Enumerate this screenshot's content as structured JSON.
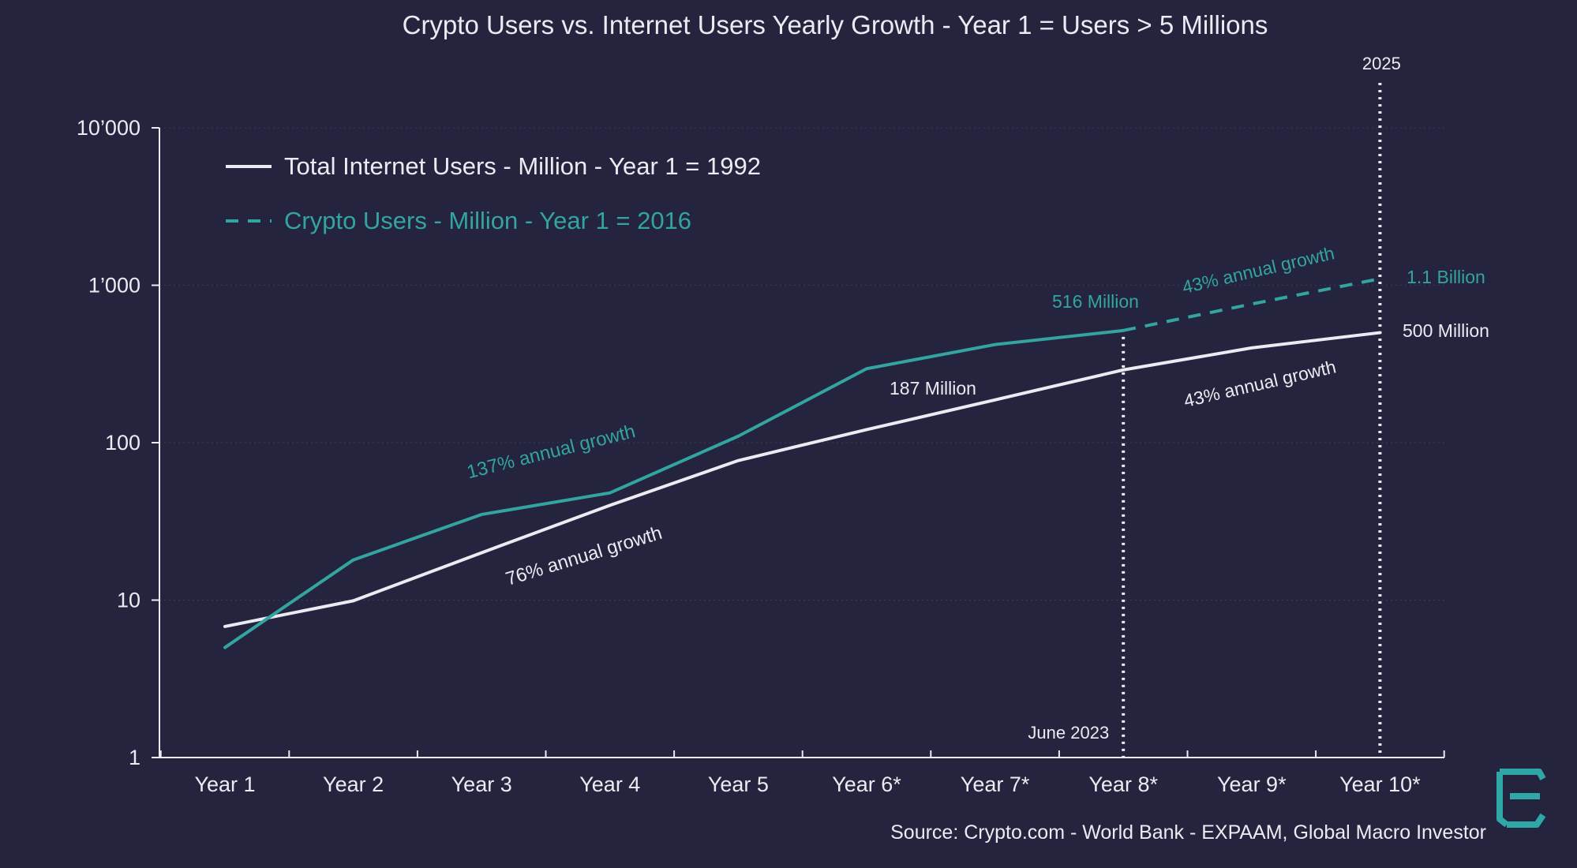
{
  "chart_data": {
    "type": "line",
    "title": "Crypto Users vs. Internet Users Yearly Growth - Year 1 = Users > 5 Millions",
    "source": "Source: Crypto.com - World Bank - EXPAAM, Global Macro Investor",
    "categories": [
      "Year 1",
      "Year 2",
      "Year 3",
      "Year 4",
      "Year 5",
      "Year 6*",
      "Year 7*",
      "Year 8*",
      "Year 9*",
      "Year 10*"
    ],
    "y_scale": "log",
    "ylim": [
      1,
      10000
    ],
    "y_ticks": [
      {
        "value": 1,
        "label": "1"
      },
      {
        "value": 10,
        "label": "10"
      },
      {
        "value": 100,
        "label": "100"
      },
      {
        "value": 1000,
        "label": "1’000"
      },
      {
        "value": 10000,
        "label": "10’000"
      }
    ],
    "grid": "horizontal dotted",
    "legend_position": "top-left",
    "series": [
      {
        "name": "Total Internet Users - Million - Year 1 = 1992",
        "color": "#ebebf2",
        "style": "solid",
        "values": [
          6.8,
          9.9,
          20,
          40,
          77,
          121,
          187,
          290,
          400,
          500
        ]
      },
      {
        "name": "Crypto Users - Million - Year 1 = 2016",
        "color": "#33a49f",
        "actual_values": [
          5,
          18,
          35,
          48,
          110,
          295,
          420,
          516
        ],
        "projection_x_index": [
          7,
          8,
          9
        ],
        "projection_values": [
          516,
          760,
          1100
        ],
        "projection_style": "dashed"
      }
    ],
    "reference_lines": [
      {
        "x_index": 7,
        "label": "June 2023",
        "label_position": "bottom"
      },
      {
        "x_index": 9,
        "label": "2025",
        "label_position": "top"
      }
    ],
    "annotations": [
      {
        "text": "137% annual growth",
        "series": "crypto",
        "color": "#33a49f"
      },
      {
        "text": "76% annual growth",
        "series": "internet",
        "color": "#ebebf2"
      },
      {
        "text": "516 Million",
        "series": "crypto",
        "color": "#33a49f"
      },
      {
        "text": "43% annual growth",
        "series": "crypto",
        "color": "#33a49f"
      },
      {
        "text": "1.1 Billion",
        "series": "crypto",
        "color": "#33a49f"
      },
      {
        "text": "187 Million",
        "series": "internet",
        "color": "#ebebf2"
      },
      {
        "text": "43% annual growth",
        "series": "internet",
        "color": "#ebebf2"
      },
      {
        "text": "500 Million",
        "series": "internet",
        "color": "#ebebf2"
      }
    ],
    "logo_icon": "expaam-logo-icon"
  }
}
